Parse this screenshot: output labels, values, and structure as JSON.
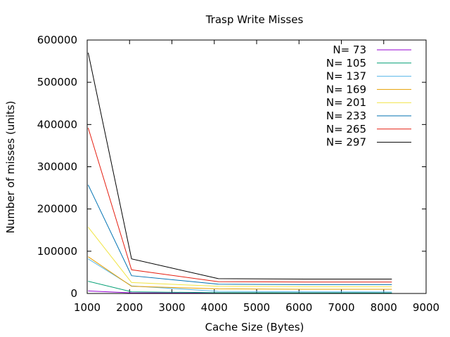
{
  "chart_data": {
    "type": "line",
    "title": "Trasp Write Misses",
    "xlabel": "Cache Size (Bytes)",
    "ylabel": "Number of misses (units)",
    "xlim": [
      1000,
      9000
    ],
    "ylim": [
      0,
      600000
    ],
    "xticks": [
      "1000",
      "2000",
      "3000",
      "4000",
      "5000",
      "6000",
      "7000",
      "8000",
      "9000"
    ],
    "yticks": [
      "0",
      "100000",
      "200000",
      "300000",
      "400000",
      "500000",
      "600000"
    ],
    "grid": false,
    "legend_position": "top-right",
    "x": [
      1024,
      2048,
      4096,
      6144,
      8192
    ],
    "series": [
      {
        "name": "N= 73",
        "color": "#9400d3",
        "values": [
          6000,
          1500,
          600,
          500,
          450
        ]
      },
      {
        "name": "N= 105",
        "color": "#009e73",
        "values": [
          29000,
          4000,
          1800,
          1500,
          1300
        ]
      },
      {
        "name": "N= 137",
        "color": "#56b4e9",
        "values": [
          82000,
          18000,
          5000,
          4000,
          3500
        ]
      },
      {
        "name": "N= 169",
        "color": "#e69f00",
        "values": [
          87000,
          17000,
          11000,
          10000,
          10000
        ]
      },
      {
        "name": "N= 201",
        "color": "#f0e442",
        "values": [
          157000,
          26000,
          17000,
          16000,
          16000
        ]
      },
      {
        "name": "N= 233",
        "color": "#0072b2",
        "values": [
          257000,
          42000,
          22000,
          21000,
          21000
        ]
      },
      {
        "name": "N= 265",
        "color": "#e51e10",
        "values": [
          392000,
          56000,
          28000,
          27000,
          27000
        ]
      },
      {
        "name": "N= 297",
        "color": "#000000",
        "values": [
          570000,
          82000,
          35000,
          34000,
          34000
        ]
      }
    ]
  }
}
